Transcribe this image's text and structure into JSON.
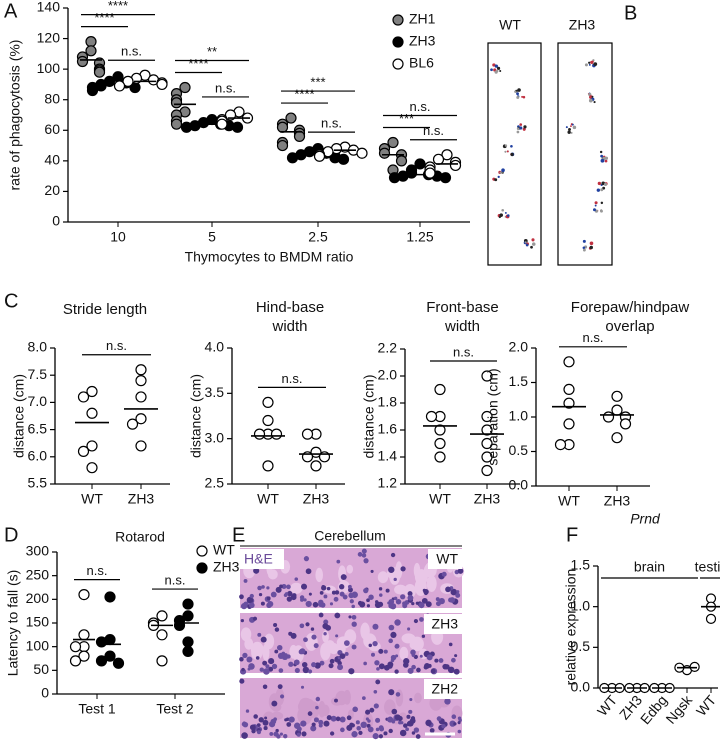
{
  "panel_labels": [
    "A",
    "B",
    "C",
    "D",
    "E",
    "F"
  ],
  "images": {
    "B": {
      "labels": [
        "WT",
        "ZH3"
      ]
    },
    "E": {
      "title": "Cerebellum",
      "stain": "H&E",
      "labels": [
        "WT",
        "ZH3",
        "ZH2"
      ]
    }
  },
  "chart_data": [
    {
      "type": "dotplot",
      "y_label": "rate of phagocytosis (%)",
      "x_label": "Thymocytes to BMDM ratio",
      "categories": [
        "10",
        "5",
        "2.5",
        "1.25"
      ],
      "ylim": [
        0,
        140
      ],
      "yticks": [
        0,
        20,
        40,
        60,
        80,
        100,
        120,
        140
      ],
      "legend": "top-right",
      "series": [
        {
          "name": "ZH1",
          "color": "#808080",
          "values": [
            [
              118,
              112,
              108,
              105,
              104,
              100,
              99,
              98
            ],
            [
              88,
              84,
              80,
              78,
              72,
              70,
              66,
              64
            ],
            [
              68,
              64,
              62,
              60,
              58,
              56,
              52,
              50
            ],
            [
              52,
              48,
              45,
              44,
              40,
              34
            ]
          ],
          "medians": [
            106,
            77,
            59,
            44
          ]
        },
        {
          "name": "ZH3",
          "color": "#000000",
          "values": [
            [
              95,
              92,
              91,
              90,
              89,
              88,
              88,
              86
            ],
            [
              67,
              65,
              64,
              63,
              63,
              62,
              62
            ],
            [
              48,
              46,
              45,
              44,
              43,
              42,
              42,
              41
            ],
            [
              38,
              34,
              32,
              31,
              30,
              30,
              29,
              29
            ]
          ],
          "medians": [
            90,
            64,
            44,
            31
          ]
        },
        {
          "name": "BL6",
          "color": "#ffffff",
          "values": [
            [
              96,
              94,
              93,
              92,
              91,
              90,
              89
            ],
            [
              72,
              70,
              68,
              67,
              66,
              64
            ],
            [
              49,
              48,
              47,
              46,
              45,
              44,
              43
            ],
            [
              44,
              41,
              39,
              37,
              36,
              34,
              32
            ]
          ],
          "medians": [
            92,
            68,
            47,
            38
          ]
        }
      ],
      "comparisons": [
        [
          {
            "pair": [
              "ZH3",
              "BL6"
            ],
            "label": "n.s."
          },
          {
            "pair": [
              "ZH1",
              "ZH3"
            ],
            "label": "****"
          },
          {
            "pair": [
              "ZH1",
              "BL6"
            ],
            "label": "****"
          }
        ],
        [
          {
            "pair": [
              "ZH3",
              "BL6"
            ],
            "label": "n.s."
          },
          {
            "pair": [
              "ZH1",
              "ZH3"
            ],
            "label": "****"
          },
          {
            "pair": [
              "ZH1",
              "BL6"
            ],
            "label": "**"
          }
        ],
        [
          {
            "pair": [
              "ZH3",
              "BL6"
            ],
            "label": "n.s."
          },
          {
            "pair": [
              "ZH1",
              "ZH3"
            ],
            "label": "****"
          },
          {
            "pair": [
              "ZH1",
              "BL6"
            ],
            "label": "***"
          }
        ],
        [
          {
            "pair": [
              "ZH3",
              "BL6"
            ],
            "label": "n.s."
          },
          {
            "pair": [
              "ZH1",
              "ZH3"
            ],
            "label": "***"
          },
          {
            "pair": [
              "ZH1",
              "BL6"
            ],
            "label": "n.s."
          }
        ]
      ]
    },
    {
      "type": "dotplot",
      "title": "Stride length",
      "y_label": "distance (cm)",
      "categories": [
        "WT",
        "ZH3"
      ],
      "ylim": [
        5.5,
        8.0
      ],
      "yticks": [
        5.5,
        {
          "value": 6,
          "label": "6.0"
        },
        6.5,
        {
          "value": 7,
          "label": "7.0"
        },
        7.5,
        {
          "value": 8,
          "label": "8.0"
        }
      ],
      "series": [
        {
          "color": "#ffffff",
          "values": [
            [
              7.2,
              7.1,
              6.8,
              6.2,
              6.1,
              5.8
            ],
            [
              7.6,
              7.4,
              7.1,
              6.7,
              6.6,
              6.2
            ]
          ],
          "medians": [
            6.63,
            6.88
          ]
        }
      ],
      "comparison": {
        "pair": [
          "WT",
          "ZH3"
        ],
        "label": "n.s."
      }
    },
    {
      "type": "dotplot",
      "title": "Hind-base width",
      "y_label": "distance (cm)",
      "categories": [
        "WT",
        "ZH3"
      ],
      "ylim": [
        2.5,
        4.0
      ],
      "yticks": [
        2.5,
        {
          "value": 3,
          "label": "3.0"
        },
        3.5,
        {
          "value": 4,
          "label": "4.0"
        }
      ],
      "series": [
        {
          "color": "#ffffff",
          "values": [
            [
              3.4,
              3.2,
              3.05,
              3.05,
              3.05,
              2.7
            ],
            [
              3.05,
              3.05,
              2.85,
              2.8,
              2.8,
              2.7
            ]
          ],
          "medians": [
            3.03,
            2.83
          ]
        }
      ],
      "comparison": {
        "pair": [
          "WT",
          "ZH3"
        ],
        "label": "n.s."
      }
    },
    {
      "type": "dotplot",
      "title": "Front-base width",
      "y_label": "distance (cm)",
      "categories": [
        "WT",
        "ZH3"
      ],
      "ylim": [
        1.2,
        2.2
      ],
      "yticks": [
        1.2,
        1.4,
        1.6,
        1.8,
        {
          "value": 2,
          "label": "2.0"
        },
        2.2
      ],
      "series": [
        {
          "color": "#ffffff",
          "values": [
            [
              1.9,
              1.7,
              1.7,
              1.6,
              1.5,
              1.4
            ],
            [
              2.0,
              1.7,
              1.6,
              1.5,
              1.4,
              1.3
            ]
          ],
          "medians": [
            1.63,
            1.57
          ]
        }
      ],
      "comparison": {
        "pair": [
          "WT",
          "ZH3"
        ],
        "label": "n.s."
      }
    },
    {
      "type": "dotplot",
      "title": "Forepaw/hindpaw overlap",
      "y_label": "separation (cm)",
      "categories": [
        "WT",
        "ZH3"
      ],
      "ylim": [
        0,
        2.0
      ],
      "yticks": [
        {
          "value": 0,
          "label": "0.0"
        },
        0.5,
        {
          "value": 1,
          "label": "1.0"
        },
        1.5,
        {
          "value": 2,
          "label": "2.0"
        }
      ],
      "series": [
        {
          "color": "#ffffff",
          "values": [
            [
              1.8,
              1.4,
              1.2,
              0.9,
              0.6,
              0.6
            ],
            [
              1.3,
              1.1,
              1.0,
              1.0,
              0.9,
              0.7
            ]
          ],
          "medians": [
            1.15,
            1.03
          ]
        }
      ],
      "comparison": {
        "pair": [
          "WT",
          "ZH3"
        ],
        "label": "n.s."
      }
    },
    {
      "type": "dotplot",
      "title": "Rotarod",
      "y_label": "Latency to fall (s)",
      "categories": [
        "Test 1",
        "Test 2"
      ],
      "ylim": [
        0,
        300
      ],
      "yticks": [
        0,
        50,
        100,
        150,
        200,
        250,
        300
      ],
      "legend": "top-right",
      "series": [
        {
          "name": "WT",
          "color": "#ffffff",
          "values": [
            [
              210,
              125,
              100,
              100,
              80,
              70
            ],
            [
              165,
              150,
              145,
              125,
              70
            ]
          ],
          "medians": [
            115,
            145
          ]
        },
        {
          "name": "ZH3",
          "color": "#000000",
          "values": [
            [
              205,
              115,
              110,
              80,
              70,
              65
            ],
            [
              190,
              165,
              155,
              145,
              110,
              90
            ]
          ],
          "medians": [
            105,
            150
          ]
        }
      ],
      "comparisons": [
        [
          {
            "pair": [
              "WT",
              "ZH3"
            ],
            "label": "n.s."
          }
        ],
        [
          {
            "pair": [
              "WT",
              "ZH3"
            ],
            "label": "n.s."
          }
        ]
      ]
    },
    {
      "type": "dotplot",
      "title": "Prnd",
      "y_label": "relative expression",
      "categories": [
        "WT",
        "ZH3",
        "Edbg",
        "Ngsk",
        "WT"
      ],
      "ylim": [
        0,
        1.5
      ],
      "yticks": [
        {
          "value": 0,
          "label": "0.0"
        },
        0.5,
        {
          "value": 1,
          "label": "1.0"
        },
        1.5
      ],
      "series": [
        {
          "color": "#ffffff",
          "values": [
            [
              0,
              0,
              0
            ],
            [
              0,
              0,
              0
            ],
            [
              0,
              0,
              0
            ],
            [
              0.22,
              0.25,
              0.26
            ],
            [
              1.1,
              1.0,
              0.85
            ]
          ],
          "medians": [
            0,
            0,
            0,
            0.25,
            1.0
          ]
        }
      ],
      "groups": [
        {
          "label": "brain",
          "categories": [
            0,
            3
          ]
        },
        {
          "label": "testis",
          "categories": [
            4,
            4
          ]
        }
      ]
    }
  ]
}
